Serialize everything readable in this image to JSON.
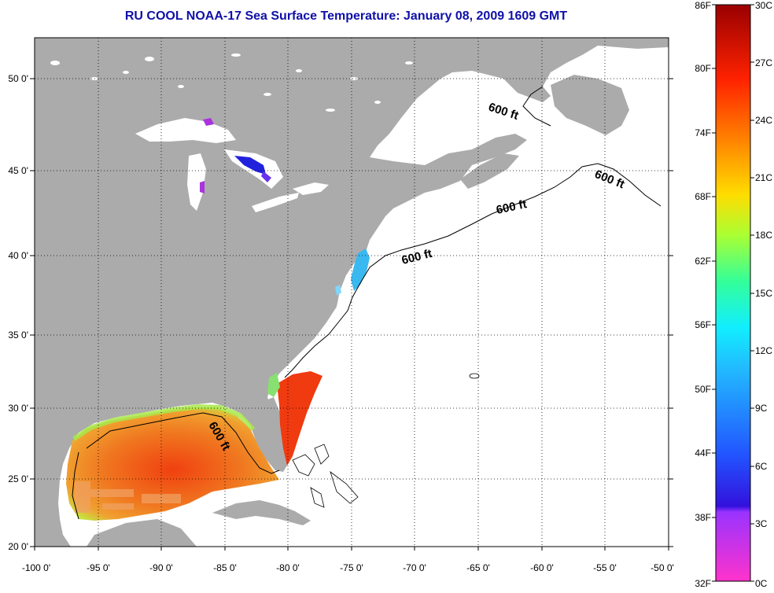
{
  "title": "RU COOL  NOAA-17  Sea Surface Temperature:  January 08, 2009 1609 GMT",
  "colors": {
    "land": "#ababab",
    "water": "#ffffff",
    "title": "#1010a8"
  },
  "x_ticks": [
    "-100 0'",
    "-95 0'",
    "-90 0'",
    "-85 0'",
    "-80 0'",
    "-75 0'",
    "-70 0'",
    "-65 0'",
    "-60 0'",
    "-55 0'",
    "-50 0'"
  ],
  "y_ticks": [
    "50 0'",
    "45 0'",
    "40 0'",
    "35 0'",
    "30 0'",
    "25 0'",
    "20 0'"
  ],
  "contour_labels": [
    "600 ft",
    "600 ft",
    "600 ft",
    "600 ft",
    "600 ft"
  ],
  "colorbar": {
    "fahrenheit": [
      "86F",
      "80F",
      "74F",
      "68F",
      "62F",
      "56F",
      "50F",
      "44F",
      "38F",
      "32F"
    ],
    "celsius": [
      "30C",
      "27C",
      "24C",
      "21C",
      "18C",
      "15C",
      "12C",
      "9C",
      "6C",
      "3C",
      "0C"
    ]
  }
}
